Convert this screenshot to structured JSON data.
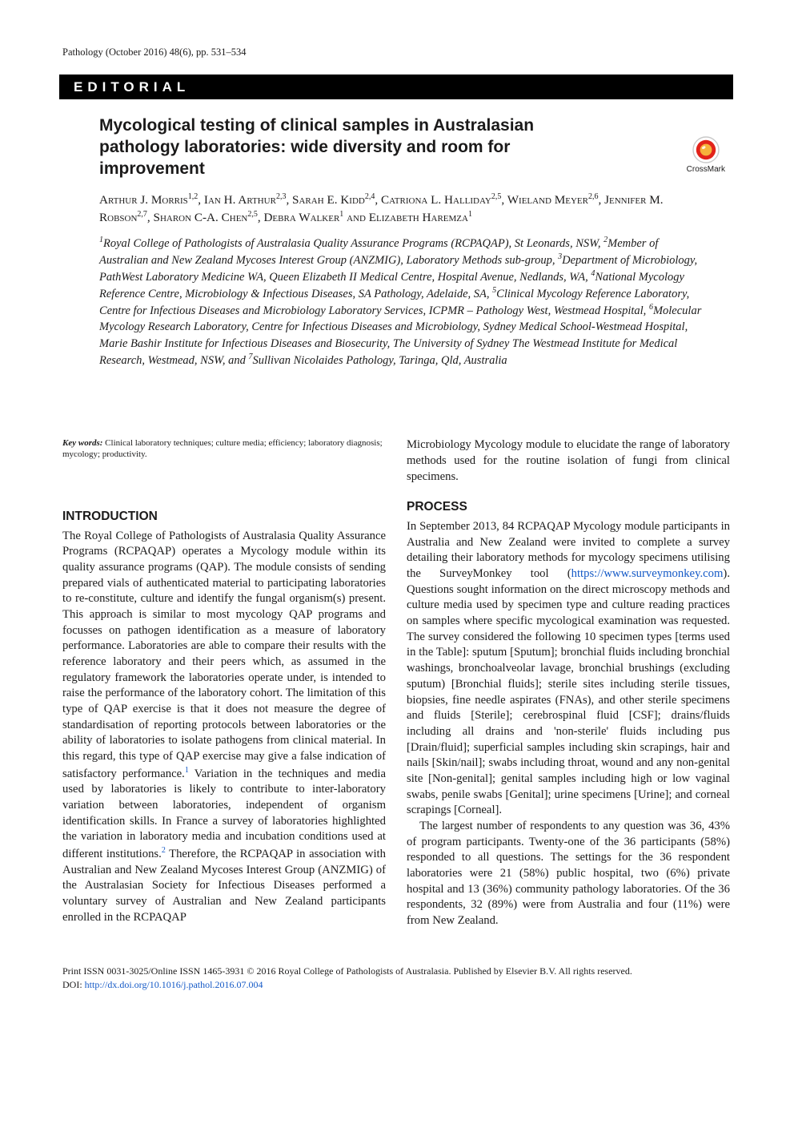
{
  "page": {
    "running_head": "Pathology (October 2016) 48(6), pp. 531–534",
    "section_band": "EDITORIAL",
    "crossmark_label": "CrossMark"
  },
  "article": {
    "title": "Mycological testing of clinical samples in Australasian pathology laboratories: wide diversity and room for improvement",
    "authors_html": "Arthur J. Morris<sup>1,2</sup>, Ian H. Arthur<sup>2,3</sup>, Sarah E. Kidd<sup>2,4</sup>, Catriona L. Halliday<sup>2,5</sup>, Wieland Meyer<sup>2,6</sup>, Jennifer M. Robson<sup>2,7</sup>, Sharon C-A. Chen<sup>2,5</sup>, Debra Walker<sup>1</sup> and Elizabeth Haremza<sup>1</sup>",
    "affiliations_html": "<sup>1</sup>Royal College of Pathologists of Australasia Quality Assurance Programs (RCPAQAP), St Leonards, NSW, <sup>2</sup>Member of Australian and New Zealand Mycoses Interest Group (ANZMIG), Laboratory Methods sub-group, <sup>3</sup>Department of Microbiology, PathWest Laboratory Medicine WA, Queen Elizabeth II Medical Centre, Hospital Avenue, Nedlands, WA, <sup>4</sup>National Mycology Reference Centre, Microbiology & Infectious Diseases, SA Pathology, Adelaide, SA, <sup>5</sup>Clinical Mycology Reference Laboratory, Centre for Infectious Diseases and Microbiology Laboratory Services, ICPMR – Pathology West, Westmead Hospital, <sup>6</sup>Molecular Mycology Research Laboratory, Centre for Infectious Diseases and Microbiology, Sydney Medical School-Westmead Hospital, Marie Bashir Institute for Infectious Diseases and Biosecurity, The University of Sydney The Westmead Institute for Medical Research, Westmead, NSW, and <sup>7</sup>Sullivan Nicolaides Pathology, Taringa, Qld, Australia"
  },
  "keywords": {
    "label": "Key words:",
    "text": " Clinical laboratory techniques; culture media; efficiency; laboratory diagnosis; mycology; productivity."
  },
  "headings": {
    "introduction": "INTRODUCTION",
    "process": "PROCESS"
  },
  "body": {
    "intro_p1_html": "The Royal College of Pathologists of Australasia Quality Assurance Programs (RCPAQAP) operates a Mycology module within its quality assurance programs (QAP). The module consists of sending prepared vials of authenticated material to participating laboratories to re-constitute, culture and identify the fungal organism(s) present. This approach is similar to most mycology QAP programs and focusses on pathogen identification as a measure of laboratory performance. Laboratories are able to compare their results with the reference laboratory and their peers which, as assumed in the regulatory framework the laboratories operate under, is intended to raise the performance of the laboratory cohort. The limitation of this type of QAP exercise is that it does not measure the degree of standardisation of reporting protocols between laboratories or the ability of laboratories to isolate pathogens from clinical material. In this regard, this type of QAP exercise may give a false indication of satisfactory performance.<sup class=\"ref\">1</sup> Variation in the techniques and media used by laboratories is likely to contribute to inter-laboratory variation between laboratories, independent of organism identification skills. In France a survey of laboratories highlighted the variation in laboratory media and incubation conditions used at different institutions.<sup class=\"ref\">2</sup> Therefore, the RCPAQAP in association with Australian and New Zealand Mycoses Interest Group (ANZMIG) of the Australasian Society for Infectious Diseases performed a voluntary survey of Australian and New Zealand participants enrolled in the RCPAQAP",
    "col2_lead": "Microbiology Mycology module to elucidate the range of laboratory methods used for the routine isolation of fungi from clinical specimens.",
    "process_p1_html": "In September 2013, 84 RCPAQAP Mycology module participants in Australia and New Zealand were invited to complete a survey detailing their laboratory methods for mycology specimens utilising the SurveyMonkey tool (<a class=\"link\" data-name=\"surveymonkey-link\" data-interactable=\"true\">https://www.surveymonkey.com</a>). Questions sought information on the direct microscopy methods and culture media used by specimen type and culture reading practices on samples where specific mycological examination was requested. The survey considered the following 10 specimen types [terms used in the Table]: sputum [Sputum]; bronchial fluids including bronchial washings, bronchoalveolar lavage, bronchial brushings (excluding sputum) [Bronchial fluids]; sterile sites including sterile tissues, biopsies, fine needle aspirates (FNAs), and other sterile specimens and fluids [Sterile]; cerebrospinal fluid [CSF]; drains/fluids including all drains and 'non-sterile' fluids including pus [Drain/fluid]; superficial samples including skin scrapings, hair and nails [Skin/nail]; swabs including throat, wound and any non-genital site [Non-genital]; genital samples including high or low vaginal swabs, penile swabs [Genital]; urine specimens [Urine]; and corneal scrapings [Corneal].",
    "process_p2": "The largest number of respondents to any question was 36, 43% of program participants. Twenty-one of the 36 participants (58%) responded to all questions. The settings for the 36 respondent laboratories were 21 (58%) public hospital, two (6%) private hospital and 13 (36%) community pathology laboratories. Of the 36 respondents, 32 (89%) were from Australia and four (11%) were from New Zealand."
  },
  "footer": {
    "issn_line": "Print ISSN 0031-3025/Online ISSN 1465-3931  © 2016 Royal College of Pathologists of Australasia. Published by Elsevier B.V. All rights reserved.",
    "doi_label": "DOI: ",
    "doi_url": "http://dx.doi.org/10.1016/j.pathol.2016.07.004"
  },
  "colors": {
    "text": "#1b1a1a",
    "link": "#1459c6",
    "band_bg": "#000000",
    "band_fg": "#ffffff",
    "crossmark_outer": "#c9c9c9",
    "crossmark_ring": "#e2231a",
    "crossmark_inner": "#f6b23b"
  }
}
